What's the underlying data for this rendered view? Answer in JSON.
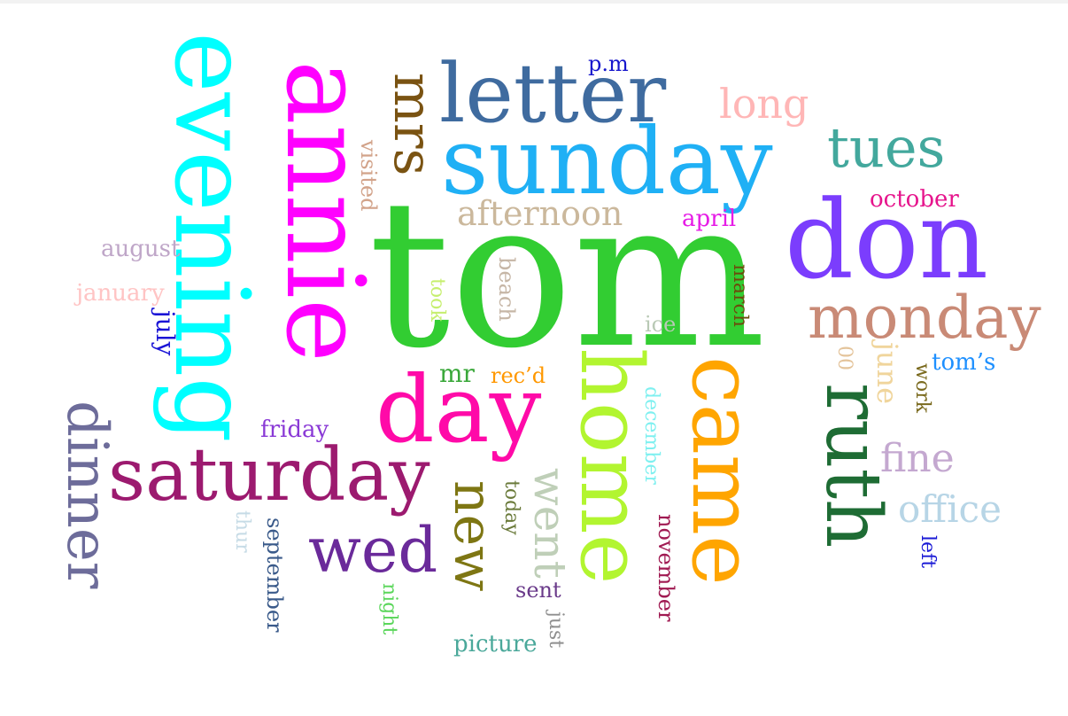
{
  "words": {
    "tom": {
      "text": "tom",
      "color": "#32cd32"
    },
    "sunday": {
      "text": "sunday",
      "color": "#1fb0f5"
    },
    "letter": {
      "text": "letter",
      "color": "#3f6b9f"
    },
    "annie": {
      "text": "annie",
      "color": "#ff00ff"
    },
    "evening": {
      "text": "evening",
      "color": "#00ffff"
    },
    "don": {
      "text": "don",
      "color": "#7b3dfd"
    },
    "home": {
      "text": "home",
      "color": "#b2f530"
    },
    "came": {
      "text": "came",
      "color": "#ffa500"
    },
    "day": {
      "text": "day",
      "color": "#ff0aa8"
    },
    "saturday": {
      "text": "saturday",
      "color": "#9c1a6f"
    },
    "ruth": {
      "text": "ruth",
      "color": "#1e6c34"
    },
    "monday": {
      "text": "monday",
      "color": "#c98a76"
    },
    "mrs": {
      "text": "mrs",
      "color": "#7a5312"
    },
    "dinner": {
      "text": "dinner",
      "color": "#6d6c9a"
    },
    "wed": {
      "text": "wed",
      "color": "#6a2a9a"
    },
    "new": {
      "text": "new",
      "color": "#7e7613"
    },
    "tues": {
      "text": "tues",
      "color": "#43a89d"
    },
    "went": {
      "text": "went",
      "color": "#bfcfb8"
    },
    "long": {
      "text": "long",
      "color": "#ffb6b6"
    },
    "afternoon": {
      "text": "afternoon",
      "color": "#cbb89c"
    },
    "office": {
      "text": "office",
      "color": "#b7d5e6"
    },
    "fine": {
      "text": "fine",
      "color": "#c4a8d0"
    },
    "p_m": {
      "text": "p.m",
      "color": "#1616cc"
    },
    "visited": {
      "text": "visited",
      "color": "#d2a38a"
    },
    "april": {
      "text": "april",
      "color": "#e61be6"
    },
    "october": {
      "text": "october",
      "color": "#e6148c"
    },
    "august": {
      "text": "august",
      "color": "#bfa6c8"
    },
    "january": {
      "text": "january",
      "color": "#ffc4c4"
    },
    "july": {
      "text": "july",
      "color": "#1a14d6"
    },
    "beach": {
      "text": "beach",
      "color": "#c6b6a6"
    },
    "took": {
      "text": "took",
      "color": "#c6ef6e"
    },
    "march": {
      "text": "march",
      "color": "#6d4a0c"
    },
    "ice": {
      "text": "ice",
      "color": "#b9c9b5"
    },
    "mr": {
      "text": "mr",
      "color": "#3aa83a"
    },
    "recd": {
      "text": "rec’d",
      "color": "#ff9800"
    },
    "december": {
      "text": "december",
      "color": "#7ff0f0"
    },
    "zero_zero": {
      "text": "00",
      "color": "#e4c49b"
    },
    "june": {
      "text": "june",
      "color": "#f0d59c"
    },
    "toms": {
      "text": "tom’s",
      "color": "#1e90ff"
    },
    "work": {
      "text": "work",
      "color": "#7a6a1e"
    },
    "friday": {
      "text": "friday",
      "color": "#8a3ad6"
    },
    "thur": {
      "text": "thur",
      "color": "#c6dbe6"
    },
    "september": {
      "text": "september",
      "color": "#3a5a8a"
    },
    "today": {
      "text": "today",
      "color": "#6a7a3a"
    },
    "november": {
      "text": "november",
      "color": "#a01a52"
    },
    "sent": {
      "text": "sent",
      "color": "#6a3a8a"
    },
    "night": {
      "text": "night",
      "color": "#5ad65a"
    },
    "just": {
      "text": "just",
      "color": "#8f8f8f"
    },
    "picture": {
      "text": "picture",
      "color": "#4aa89a"
    },
    "left": {
      "text": "left",
      "color": "#1a1ad6"
    }
  }
}
